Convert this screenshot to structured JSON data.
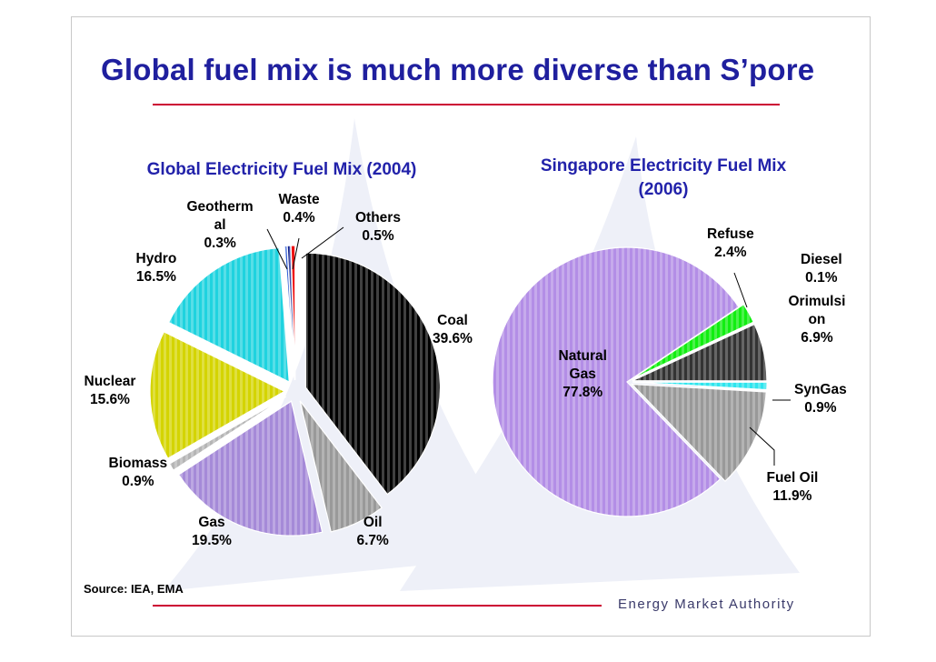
{
  "slide": {
    "title": "Global fuel mix is much more diverse than S’pore",
    "source": "Source: IEA, EMA",
    "footer_org": "Energy Market Authority"
  },
  "chart_data": [
    {
      "type": "pie",
      "title": "Global Electricity Fuel Mix (2004)",
      "slices": [
        {
          "key": "coal",
          "label": "Coal\n39.6%",
          "value": 39.6,
          "color": "#000000"
        },
        {
          "key": "oil",
          "label": "Oil\n6.7%",
          "value": 6.7,
          "color": "#999999"
        },
        {
          "key": "gas",
          "label": "Gas\n19.5%",
          "value": 19.5,
          "color": "#a58ad8"
        },
        {
          "key": "biomass",
          "label": "Biomass\n0.9%",
          "value": 0.9,
          "color": "#b5b5b5"
        },
        {
          "key": "nuclear",
          "label": "Nuclear\n15.6%",
          "value": 15.6,
          "color": "#d4d400"
        },
        {
          "key": "hydro",
          "label": "Hydro\n16.5%",
          "value": 16.5,
          "color": "#1fd3df"
        },
        {
          "key": "geothermal",
          "label": "Geotherm\nal\n0.3%",
          "value": 0.3,
          "color": "#2f5dd6"
        },
        {
          "key": "waste",
          "label": "Waste\n0.4%",
          "value": 0.4,
          "color": "#0a1a8a"
        },
        {
          "key": "others",
          "label": "Others\n0.5%",
          "value": 0.5,
          "color": "#ee1111"
        }
      ]
    },
    {
      "type": "pie",
      "title": "Singapore Electricity Fuel Mix\n(2006)",
      "slices": [
        {
          "key": "refuse",
          "label": "Refuse\n2.4%",
          "value": 2.4,
          "color": "#11ee11"
        },
        {
          "key": "diesel",
          "label": "Diesel\n0.1%",
          "value": 0.1,
          "color": "#333399"
        },
        {
          "key": "orimulsion",
          "label": "Orimulsi\non\n6.9%",
          "value": 6.9,
          "color": "#333333"
        },
        {
          "key": "syngas",
          "label": "SynGas\n0.9%",
          "value": 0.9,
          "color": "#2ee5ee"
        },
        {
          "key": "fueloil",
          "label": "Fuel Oil\n11.9%",
          "value": 11.9,
          "color": "#999999"
        },
        {
          "key": "natgas",
          "label": "Natural\nGas\n77.8%",
          "value": 77.8,
          "color": "#b38ee6"
        }
      ]
    }
  ]
}
